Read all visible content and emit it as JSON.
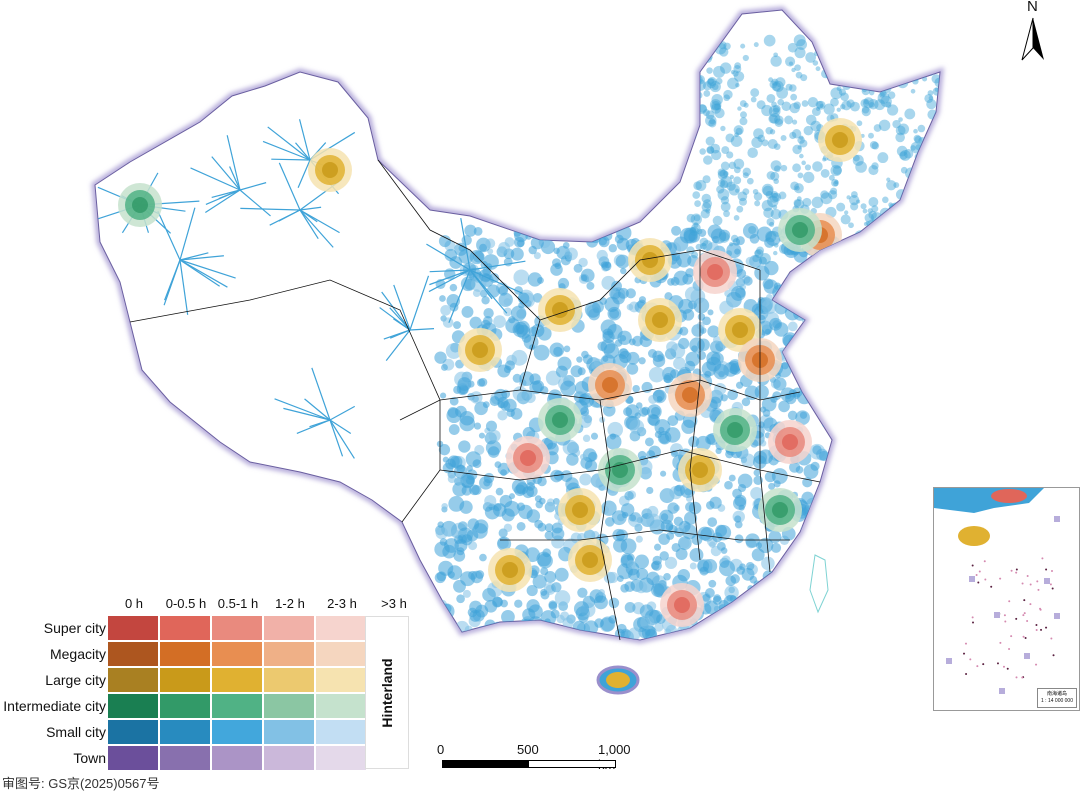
{
  "north_label": "N",
  "legend": {
    "columns": [
      "0 h",
      "0-0.5 h",
      "0.5-1 h",
      "1-2 h",
      "2-3 h",
      ">3 h"
    ],
    "rows": [
      {
        "label": "Super city",
        "colors": [
          "#c3463f",
          "#e0665a",
          "#e98a7e",
          "#f1b1a8",
          "#f6d4ce"
        ]
      },
      {
        "label": "Megacity",
        "colors": [
          "#ad561f",
          "#d36e25",
          "#e88e51",
          "#efb087",
          "#f5d6bf"
        ]
      },
      {
        "label": "Large city",
        "colors": [
          "#a98022",
          "#c99a1a",
          "#e0b131",
          "#ecc96f",
          "#f6e3b0"
        ]
      },
      {
        "label": "Intermediate city",
        "colors": [
          "#1a7f52",
          "#329a68",
          "#50b285",
          "#8bc6a3",
          "#c5e2cd"
        ]
      },
      {
        "label": "Small city",
        "colors": [
          "#1b73a3",
          "#288bbf",
          "#42a7dc",
          "#82c1e5",
          "#c2def3"
        ]
      },
      {
        "label": "Town",
        "colors": [
          "#6b4f9b",
          "#8870ae",
          "#ab94c6",
          "#cbb8da",
          "#e4d9ea"
        ]
      }
    ],
    "hinterland_label": "Hinterland"
  },
  "scale_bar": {
    "ticks": [
      "0",
      "500",
      "1,000 km"
    ]
  },
  "approval_number": "审图号: GS京(2025)0567号",
  "inset": {
    "title": "南海诸岛",
    "scale": "1 : 14 000 000"
  }
}
